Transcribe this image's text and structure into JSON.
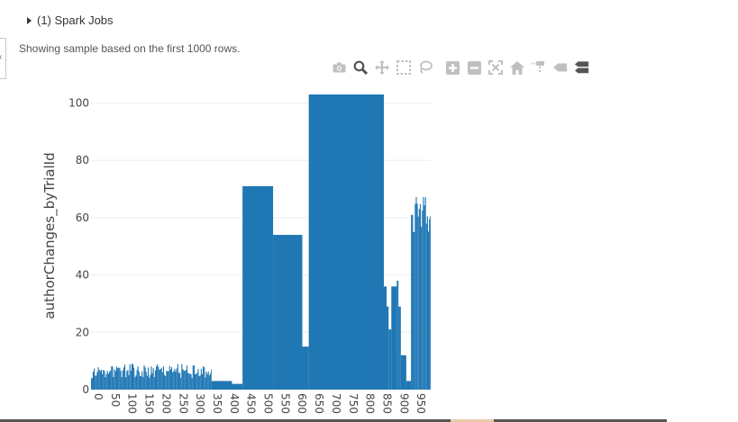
{
  "header": {
    "jobs_label": "(1) Spark Jobs",
    "sample_note": "Showing sample based on the first 1000 rows."
  },
  "toolbar": {
    "icons": [
      "camera-icon",
      "zoom-icon",
      "pan-icon",
      "box-select-icon",
      "lasso-select-icon",
      "zoom-in-icon",
      "zoom-out-icon",
      "autoscale-icon",
      "reset-axes-icon",
      "spike-lines-icon",
      "hover-closest-icon",
      "hover-compare-icon"
    ]
  },
  "colors": {
    "bar": "#1f77b4",
    "grid": "#eeeeee",
    "axis_text": "#444444"
  },
  "chart_data": {
    "type": "bar",
    "ylabel": "authorChanges_byTrialId",
    "xlabel": "",
    "xlim": [
      0,
      1000
    ],
    "ylim": [
      0,
      103
    ],
    "yticks": [
      0,
      20,
      40,
      60,
      80,
      100
    ],
    "xticks": [
      0,
      50,
      100,
      150,
      200,
      250,
      300,
      350,
      400,
      450,
      500,
      550,
      600,
      650,
      700,
      750,
      800,
      850,
      900,
      950
    ],
    "grid": true,
    "segments": [
      {
        "x0": 0,
        "x1": 5,
        "y": 4
      },
      {
        "x0": 5,
        "x1": 355,
        "y": 6,
        "varying": true,
        "min": 4,
        "max": 9
      },
      {
        "x0": 355,
        "x1": 415,
        "y": 3
      },
      {
        "x0": 415,
        "x1": 446,
        "y": 2
      },
      {
        "x0": 446,
        "x1": 536,
        "y": 71
      },
      {
        "x0": 536,
        "x1": 622,
        "y": 54
      },
      {
        "x0": 622,
        "x1": 641,
        "y": 15
      },
      {
        "x0": 641,
        "x1": 862,
        "y": 103
      },
      {
        "x0": 862,
        "x1": 870,
        "y": 36
      },
      {
        "x0": 870,
        "x1": 876,
        "y": 29
      },
      {
        "x0": 876,
        "x1": 884,
        "y": 21
      },
      {
        "x0": 884,
        "x1": 900,
        "y": 36
      },
      {
        "x0": 900,
        "x1": 905,
        "y": 38
      },
      {
        "x0": 905,
        "x1": 912,
        "y": 29
      },
      {
        "x0": 912,
        "x1": 928,
        "y": 12
      },
      {
        "x0": 928,
        "x1": 942,
        "y": 3
      },
      {
        "x0": 942,
        "x1": 948,
        "y": 61
      },
      {
        "x0": 948,
        "x1": 953,
        "y": 55
      },
      {
        "x0": 953,
        "x1": 1000,
        "y": 68,
        "varying": true,
        "min": 55,
        "max": 68
      }
    ]
  }
}
